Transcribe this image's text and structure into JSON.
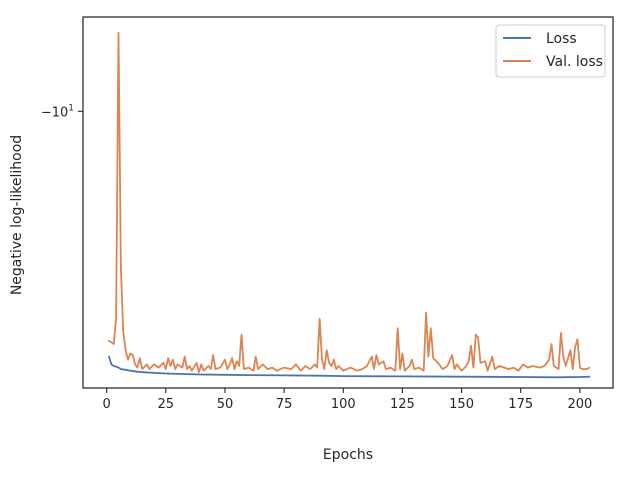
{
  "chart_data": {
    "type": "line",
    "xlabel": "Epochs",
    "ylabel": "Negative log-likelihood",
    "y_scale": "symlog",
    "xlim": [
      -10,
      214
    ],
    "ylim": [
      -18.8,
      -7.0
    ],
    "x_ticks": [
      0,
      25,
      50,
      75,
      100,
      125,
      150,
      175,
      200
    ],
    "y_ticks": [
      {
        "value": -10,
        "base": "10",
        "exp": "1",
        "neg": "−"
      }
    ],
    "grid": false,
    "legend_position": "top-right",
    "series": [
      {
        "name": "Loss",
        "color": "#4c72b0",
        "points": [
          [
            1,
            -17.8
          ],
          [
            2,
            -18.05
          ],
          [
            3,
            -18.1
          ],
          [
            4,
            -18.12
          ],
          [
            5,
            -18.15
          ],
          [
            6,
            -18.2
          ],
          [
            8,
            -18.22
          ],
          [
            10,
            -18.25
          ],
          [
            13,
            -18.28
          ],
          [
            16,
            -18.3
          ],
          [
            20,
            -18.32
          ],
          [
            25,
            -18.34
          ],
          [
            30,
            -18.35
          ],
          [
            40,
            -18.37
          ],
          [
            50,
            -18.38
          ],
          [
            60,
            -18.39
          ],
          [
            75,
            -18.4
          ],
          [
            90,
            -18.41
          ],
          [
            100,
            -18.42
          ],
          [
            125,
            -18.43
          ],
          [
            150,
            -18.44
          ],
          [
            175,
            -18.45
          ],
          [
            190,
            -18.46
          ],
          [
            200,
            -18.45
          ],
          [
            204,
            -18.44
          ]
        ]
      },
      {
        "name": "Val. loss",
        "color": "#dd8452",
        "points": [
          [
            1,
            -17.3
          ],
          [
            3,
            -17.4
          ],
          [
            4,
            -16.6
          ],
          [
            5,
            -7.5
          ],
          [
            6,
            -15.0
          ],
          [
            7,
            -17.0
          ],
          [
            8,
            -17.6
          ],
          [
            9,
            -17.9
          ],
          [
            10,
            -17.7
          ],
          [
            11,
            -17.75
          ],
          [
            12,
            -18.05
          ],
          [
            13,
            -18.15
          ],
          [
            14,
            -17.85
          ],
          [
            15,
            -18.2
          ],
          [
            17,
            -18.05
          ],
          [
            18,
            -18.2
          ],
          [
            20,
            -18.05
          ],
          [
            22,
            -18.15
          ],
          [
            24,
            -18.0
          ],
          [
            25,
            -18.2
          ],
          [
            26,
            -17.85
          ],
          [
            27,
            -18.1
          ],
          [
            28,
            -17.9
          ],
          [
            29,
            -18.2
          ],
          [
            30,
            -18.05
          ],
          [
            32,
            -18.15
          ],
          [
            33,
            -17.8
          ],
          [
            34,
            -18.2
          ],
          [
            35,
            -18.1
          ],
          [
            36,
            -18.25
          ],
          [
            38,
            -18.0
          ],
          [
            39,
            -18.3
          ],
          [
            40,
            -18.05
          ],
          [
            41,
            -18.25
          ],
          [
            43,
            -18.1
          ],
          [
            44,
            -18.2
          ],
          [
            45,
            -17.75
          ],
          [
            46,
            -18.2
          ],
          [
            48,
            -18.15
          ],
          [
            50,
            -17.9
          ],
          [
            51,
            -18.2
          ],
          [
            52,
            -18.05
          ],
          [
            53,
            -17.85
          ],
          [
            54,
            -18.2
          ],
          [
            55,
            -17.95
          ],
          [
            56,
            -18.1
          ],
          [
            57,
            -17.1
          ],
          [
            58,
            -18.2
          ],
          [
            60,
            -18.15
          ],
          [
            62,
            -18.25
          ],
          [
            63,
            -17.8
          ],
          [
            64,
            -18.2
          ],
          [
            66,
            -18.05
          ],
          [
            68,
            -18.2
          ],
          [
            70,
            -18.15
          ],
          [
            72,
            -18.25
          ],
          [
            75,
            -18.15
          ],
          [
            78,
            -18.2
          ],
          [
            80,
            -18.05
          ],
          [
            82,
            -18.25
          ],
          [
            84,
            -18.1
          ],
          [
            86,
            -18.2
          ],
          [
            88,
            -18.05
          ],
          [
            89,
            -18.15
          ],
          [
            90,
            -16.6
          ],
          [
            91,
            -17.9
          ],
          [
            92,
            -18.2
          ],
          [
            93,
            -17.6
          ],
          [
            94,
            -18.0
          ],
          [
            95,
            -18.1
          ],
          [
            96,
            -17.9
          ],
          [
            97,
            -18.2
          ],
          [
            98,
            -18.1
          ],
          [
            100,
            -18.25
          ],
          [
            103,
            -18.15
          ],
          [
            106,
            -18.25
          ],
          [
            108,
            -18.2
          ],
          [
            110,
            -18.1
          ],
          [
            112,
            -17.8
          ],
          [
            113,
            -18.2
          ],
          [
            114,
            -17.75
          ],
          [
            115,
            -18.05
          ],
          [
            117,
            -17.95
          ],
          [
            118,
            -18.2
          ],
          [
            120,
            -18.15
          ],
          [
            122,
            -18.25
          ],
          [
            123,
            -16.9
          ],
          [
            124,
            -18.2
          ],
          [
            125,
            -17.7
          ],
          [
            126,
            -18.25
          ],
          [
            128,
            -18.1
          ],
          [
            129,
            -17.9
          ],
          [
            130,
            -18.2
          ],
          [
            132,
            -18.15
          ],
          [
            134,
            -18.25
          ],
          [
            135,
            -16.4
          ],
          [
            136,
            -17.8
          ],
          [
            137,
            -16.9
          ],
          [
            138,
            -17.85
          ],
          [
            140,
            -18.0
          ],
          [
            142,
            -18.2
          ],
          [
            144,
            -18.1
          ],
          [
            146,
            -17.75
          ],
          [
            147,
            -18.2
          ],
          [
            148,
            -18.05
          ],
          [
            150,
            -18.25
          ],
          [
            152,
            -18.1
          ],
          [
            153,
            -17.95
          ],
          [
            154,
            -17.45
          ],
          [
            155,
            -18.15
          ],
          [
            156,
            -17.1
          ],
          [
            157,
            -17.2
          ],
          [
            158,
            -18.0
          ],
          [
            160,
            -17.95
          ],
          [
            161,
            -18.25
          ],
          [
            163,
            -17.8
          ],
          [
            164,
            -18.2
          ],
          [
            166,
            -18.1
          ],
          [
            168,
            -18.15
          ],
          [
            170,
            -18.2
          ],
          [
            172,
            -18.15
          ],
          [
            174,
            -18.25
          ],
          [
            176,
            -18.05
          ],
          [
            178,
            -18.15
          ],
          [
            180,
            -18.1
          ],
          [
            183,
            -18.15
          ],
          [
            185,
            -18.1
          ],
          [
            187,
            -17.9
          ],
          [
            188,
            -17.4
          ],
          [
            189,
            -18.1
          ],
          [
            191,
            -18.2
          ],
          [
            192,
            -17.05
          ],
          [
            193,
            -17.8
          ],
          [
            194,
            -18.1
          ],
          [
            196,
            -17.6
          ],
          [
            197,
            -18.2
          ],
          [
            198,
            -17.5
          ],
          [
            199,
            -17.25
          ],
          [
            200,
            -18.15
          ],
          [
            201,
            -18.2
          ],
          [
            203,
            -18.2
          ],
          [
            204,
            -18.15
          ]
        ]
      }
    ]
  }
}
